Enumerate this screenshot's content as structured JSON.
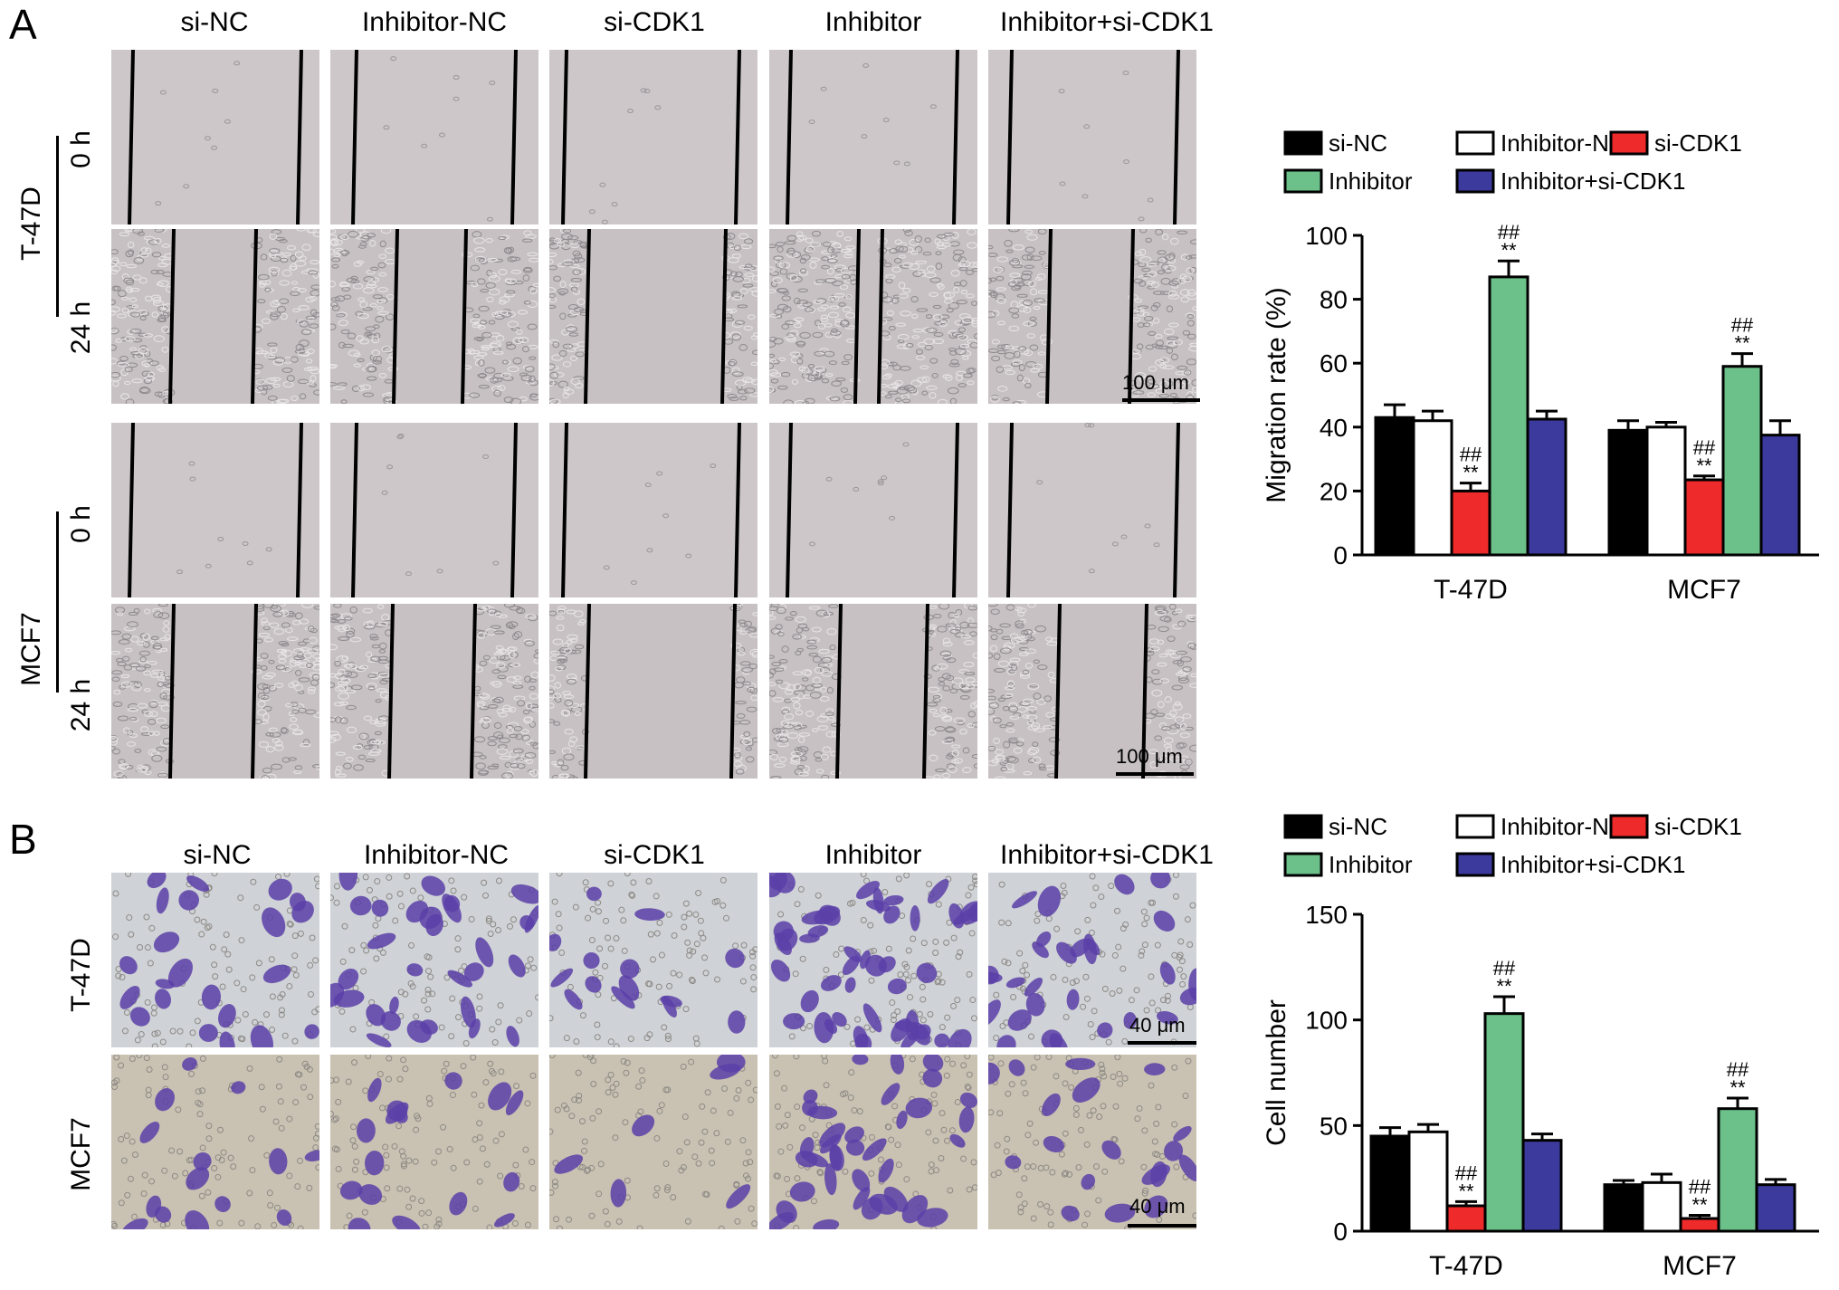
{
  "panels": {
    "A": {
      "letter": "A",
      "columns": [
        "si-NC",
        "Inhibitor-NC",
        "si-CDK1",
        "Inhibitor",
        "Inhibitor+si-CDK1"
      ],
      "cell_lines": [
        {
          "name": "T-47D",
          "times": [
            "0 h",
            "24 h"
          ]
        },
        {
          "name": "MCF7",
          "times": [
            "0 h",
            "24 h"
          ]
        }
      ],
      "scale_bar": "100 μm"
    },
    "B": {
      "letter": "B",
      "columns": [
        "si-NC",
        "Inhibitor-NC",
        "si-CDK1",
        "Inhibitor",
        "Inhibitor+si-CDK1"
      ],
      "rows": [
        "T-47D",
        "MCF7"
      ],
      "scale_bar": "40 μm"
    }
  },
  "colors": {
    "si-NC": "#000000",
    "Inhibitor-NC": "#ffffff",
    "si-CDK1": "#ee2a2a",
    "Inhibitor": "#6cc18a",
    "Inhibitor+si-CDK1": "#3c3a9c",
    "wound_bg": "#c8c2c4",
    "crystal_violet": "#5a3fa6"
  },
  "chart_data": [
    {
      "type": "bar",
      "panel": "A",
      "categories": [
        "T-47D",
        "MCF7"
      ],
      "ylabel": "Migration rate (%)",
      "ylim": [
        0,
        100
      ],
      "yticks": [
        0,
        20,
        40,
        60,
        80,
        100
      ],
      "legend": [
        "si-NC",
        "Inhibitor-NC",
        "si-CDK1",
        "Inhibitor",
        "Inhibitor+si-CDK1"
      ],
      "series": [
        {
          "name": "si-NC",
          "values": [
            43,
            39
          ],
          "errors": [
            4,
            3
          ],
          "marks": [
            "",
            ""
          ]
        },
        {
          "name": "Inhibitor-NC",
          "values": [
            42,
            40
          ],
          "errors": [
            3,
            1.5
          ],
          "marks": [
            "",
            ""
          ]
        },
        {
          "name": "si-CDK1",
          "values": [
            20,
            23.5
          ],
          "errors": [
            2.5,
            1.2
          ],
          "marks": [
            "**",
            "**"
          ],
          "marks2": [
            "##",
            "##"
          ]
        },
        {
          "name": "Inhibitor",
          "values": [
            87,
            59
          ],
          "errors": [
            5,
            4
          ],
          "marks": [
            "**",
            "**"
          ],
          "marks2": [
            "##",
            "##"
          ]
        },
        {
          "name": "Inhibitor+si-CDK1",
          "values": [
            42.5,
            37.5
          ],
          "errors": [
            2.5,
            4.5
          ],
          "marks": [
            "",
            ""
          ]
        }
      ]
    },
    {
      "type": "bar",
      "panel": "B",
      "categories": [
        "T-47D",
        "MCF7"
      ],
      "ylabel": "Cell number",
      "ylim": [
        0,
        150
      ],
      "yticks": [
        0,
        50,
        100,
        150
      ],
      "legend": [
        "si-NC",
        "Inhibitor-NC",
        "si-CDK1",
        "Inhibitor",
        "Inhibitor+si-CDK1"
      ],
      "series": [
        {
          "name": "si-NC",
          "values": [
            45,
            22
          ],
          "errors": [
            4,
            2
          ],
          "marks": [
            "",
            ""
          ]
        },
        {
          "name": "Inhibitor-NC",
          "values": [
            47,
            23
          ],
          "errors": [
            3.5,
            4
          ],
          "marks": [
            "",
            ""
          ]
        },
        {
          "name": "si-CDK1",
          "values": [
            12,
            6
          ],
          "errors": [
            2,
            1.5
          ],
          "marks": [
            "**",
            "**"
          ],
          "marks2": [
            "##",
            "##"
          ]
        },
        {
          "name": "Inhibitor",
          "values": [
            103,
            58
          ],
          "errors": [
            8,
            5
          ],
          "marks": [
            "**",
            "**"
          ],
          "marks2": [
            "##",
            "##"
          ]
        },
        {
          "name": "Inhibitor+si-CDK1",
          "values": [
            43,
            22
          ],
          "errors": [
            3,
            2.5
          ],
          "marks": [
            "",
            ""
          ]
        }
      ]
    }
  ]
}
